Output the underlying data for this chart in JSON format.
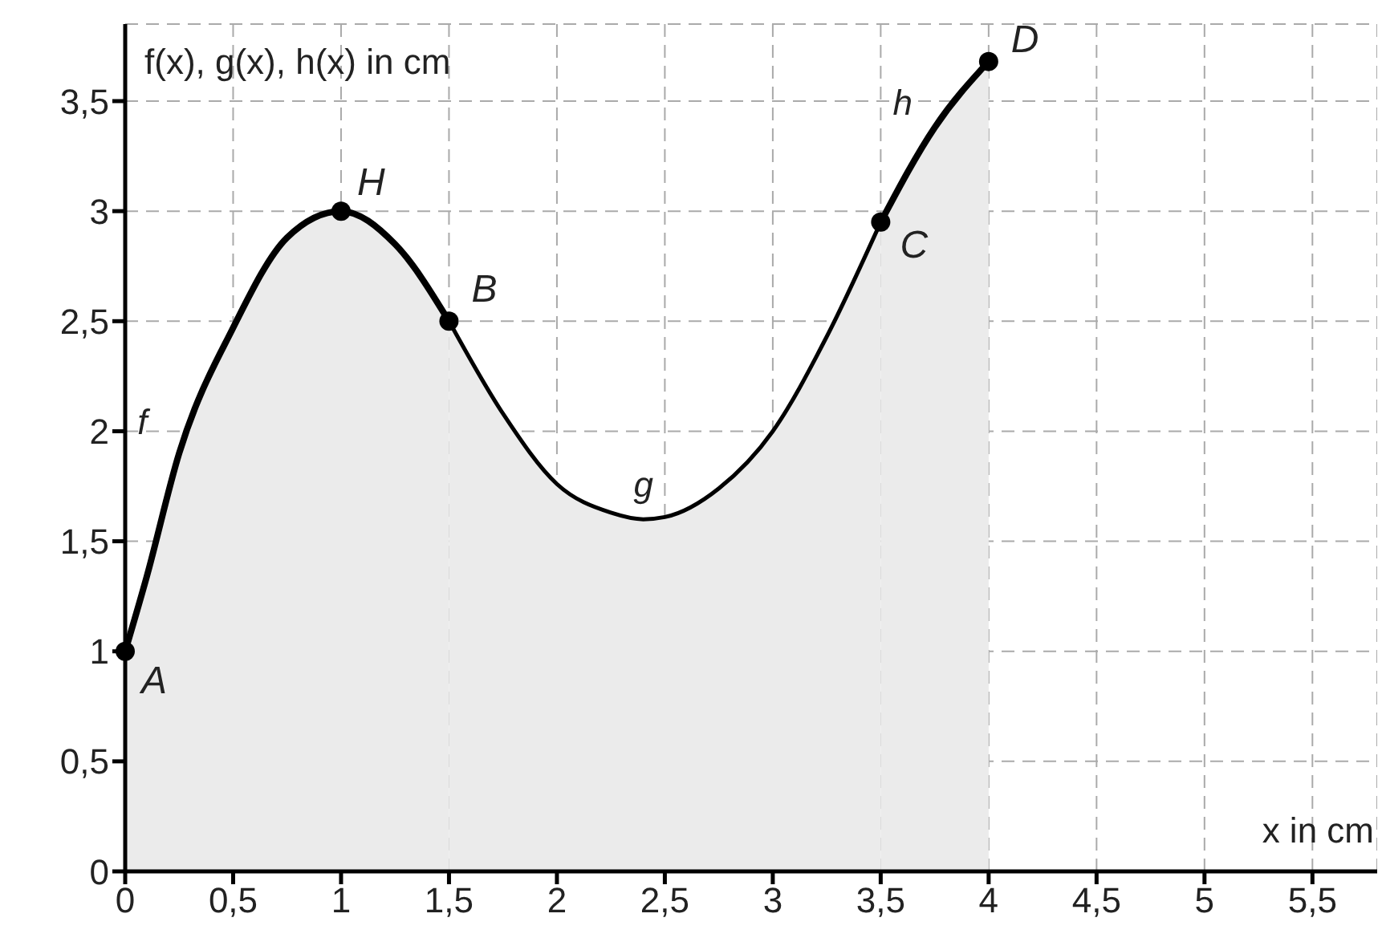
{
  "chart_data": {
    "type": "area",
    "ylabel": "f(x), g(x), h(x) in cm",
    "xlabel": "x in cm",
    "xlim": [
      0,
      5.8
    ],
    "ylim": [
      0,
      3.85
    ],
    "xticks": [
      0,
      {
        "value": 0.5,
        "label": "0,5"
      },
      1,
      {
        "value": 1.5,
        "label": "1,5"
      },
      2,
      {
        "value": 2.5,
        "label": "2,5"
      },
      3,
      {
        "value": 3.5,
        "label": "3,5"
      },
      4,
      {
        "value": 4.5,
        "label": "4,5"
      },
      5,
      {
        "value": 5.5,
        "label": "5,5"
      }
    ],
    "yticks": [
      0,
      {
        "value": 0.5,
        "label": "0,5"
      },
      1,
      {
        "value": 1.5,
        "label": "1,5"
      },
      2,
      {
        "value": 2.5,
        "label": "2,5"
      },
      3,
      {
        "value": 3.5,
        "label": "3,5"
      }
    ],
    "grid": true,
    "marker": "none",
    "series": [
      {
        "name": "f",
        "color": "#000000",
        "x": [
          0,
          0.1,
          0.25,
          0.5,
          0.75,
          1,
          1.25,
          1.5
        ],
        "values": [
          1,
          1.34,
          1.9,
          2.47,
          2.88,
          3,
          2.85,
          2.5
        ]
      },
      {
        "name": "g",
        "color": "#000000",
        "x": [
          1.5,
          1.75,
          2,
          2.25,
          2.4,
          2.5,
          2.75,
          3,
          3.25,
          3.5
        ],
        "values": [
          2.5,
          2.08,
          1.76,
          1.63,
          1.6,
          1.61,
          1.74,
          2.0,
          2.43,
          2.95
        ]
      },
      {
        "name": "h",
        "color": "#000000",
        "x": [
          3.5,
          3.75,
          4
        ],
        "values": [
          2.95,
          3.38,
          3.68
        ]
      }
    ],
    "annotations": [
      {
        "text": "A",
        "x": 0,
        "y": 1
      },
      {
        "text": "H",
        "x": 1,
        "y": 3
      },
      {
        "text": "B",
        "x": 1.5,
        "y": 2.5
      },
      {
        "text": "C",
        "x": 3.5,
        "y": 2.95
      },
      {
        "text": "D",
        "x": 4,
        "y": 3.68
      }
    ]
  }
}
